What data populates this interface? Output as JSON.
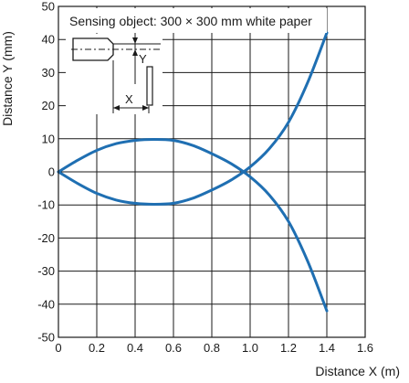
{
  "chart_data": {
    "type": "line",
    "title": "",
    "annotation": "Sensing object: 300 × 300 mm white paper",
    "xlabel": "Distance X (m)",
    "ylabel": "Distance Y (mm)",
    "xlim": [
      0,
      1.6
    ],
    "ylim": [
      -50,
      50
    ],
    "x_ticks": [
      "0",
      "0.2",
      "0.4",
      "0.6",
      "0.8",
      "1.0",
      "1.2",
      "1.4",
      "1.6"
    ],
    "y_ticks": [
      "50",
      "40",
      "30",
      "20",
      "10",
      "0",
      "-10",
      "-20",
      "-30",
      "-40",
      "-50"
    ],
    "grid": true,
    "legend": "none",
    "line_color": "#1f6fb2",
    "inset": {
      "x_label": "X",
      "y_label": "Y"
    },
    "series": [
      {
        "x": [
          0,
          0.1,
          0.2,
          0.3,
          0.4,
          0.5,
          0.6,
          0.7,
          0.8,
          0.9,
          1.0,
          1.1,
          1.2,
          1.3,
          1.4
        ],
        "values": [
          0,
          3.5,
          6.5,
          8.5,
          9.5,
          9.8,
          9.5,
          8.0,
          5.5,
          2.5,
          -1.5,
          -7.0,
          -15.0,
          -27.0,
          -42.0
        ]
      },
      {
        "x": [
          0,
          0.1,
          0.2,
          0.3,
          0.4,
          0.5,
          0.6,
          0.7,
          0.8,
          0.9,
          1.0,
          1.1,
          1.2,
          1.3,
          1.4
        ],
        "values": [
          0,
          -3.5,
          -6.5,
          -8.5,
          -9.5,
          -9.8,
          -9.5,
          -8.0,
          -5.5,
          -2.5,
          1.5,
          7.0,
          15.0,
          27.0,
          42.0
        ]
      }
    ]
  }
}
